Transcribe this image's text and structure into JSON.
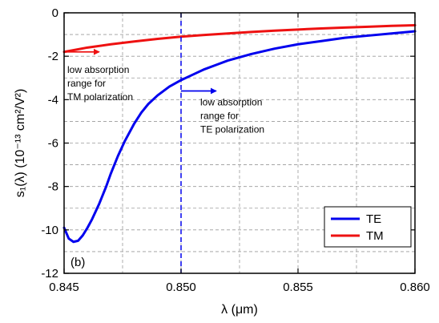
{
  "chart_data": {
    "type": "line",
    "xlabel": "λ  (μm)",
    "ylabel": "s₁(λ)  (10⁻¹³ cm²/V²)",
    "xlim": [
      0.845,
      0.86
    ],
    "ylim": [
      -12,
      0
    ],
    "x_ticks": [
      0.845,
      0.85,
      0.855,
      0.86
    ],
    "x_tick_labels": [
      "0.845",
      "0.850",
      "0.855",
      "0.860"
    ],
    "y_ticks": [
      0,
      -2,
      -4,
      -6,
      -8,
      -10,
      -12
    ],
    "y_tick_labels": [
      "0",
      "-2",
      "-4",
      "-6",
      "-8",
      "-10",
      "-12"
    ],
    "grid": true,
    "grid_style": "dashed",
    "legend_position": "bottom-right",
    "panel_label": "(b)",
    "series": [
      {
        "name": "TE",
        "color": "#0000ee",
        "x": [
          0.845,
          0.8452,
          0.8454,
          0.8456,
          0.8458,
          0.846,
          0.8462,
          0.8465,
          0.8468,
          0.847,
          0.8473,
          0.8476,
          0.848,
          0.8483,
          0.8486,
          0.849,
          0.8495,
          0.85,
          0.8505,
          0.851,
          0.8515,
          0.852,
          0.853,
          0.854,
          0.855,
          0.856,
          0.857,
          0.858,
          0.859,
          0.86
        ],
        "y": [
          -9.9,
          -10.4,
          -10.55,
          -10.5,
          -10.25,
          -9.9,
          -9.5,
          -8.8,
          -8.0,
          -7.4,
          -6.6,
          -5.9,
          -5.1,
          -4.6,
          -4.2,
          -3.8,
          -3.4,
          -3.1,
          -2.85,
          -2.6,
          -2.4,
          -2.2,
          -1.9,
          -1.65,
          -1.45,
          -1.3,
          -1.15,
          -1.05,
          -0.95,
          -0.85
        ]
      },
      {
        "name": "TM",
        "color": "#ee1111",
        "x": [
          0.845,
          0.846,
          0.847,
          0.848,
          0.849,
          0.85,
          0.851,
          0.852,
          0.853,
          0.854,
          0.855,
          0.856,
          0.857,
          0.858,
          0.859,
          0.86
        ],
        "y": [
          -1.8,
          -1.6,
          -1.45,
          -1.32,
          -1.2,
          -1.1,
          -1.02,
          -0.95,
          -0.88,
          -0.82,
          -0.77,
          -0.72,
          -0.68,
          -0.64,
          -0.6,
          -0.57
        ]
      }
    ],
    "vertical_line": {
      "x": 0.85,
      "color": "#0000ee",
      "style": "dashed"
    },
    "annotations": [
      {
        "id": "tm",
        "lines": [
          "low absorption",
          "range for",
          "TM polarization"
        ],
        "arrow_color": "#ee1111",
        "arrow_from": [
          0.845,
          -1.8
        ],
        "arrow_to": [
          0.8465,
          -1.8
        ]
      },
      {
        "id": "te",
        "lines": [
          "low absorption",
          "range for",
          "TE polarization"
        ],
        "arrow_color": "#0000ee",
        "arrow_from": [
          0.85,
          -3.6
        ],
        "arrow_to": [
          0.8515,
          -3.6
        ]
      }
    ]
  }
}
